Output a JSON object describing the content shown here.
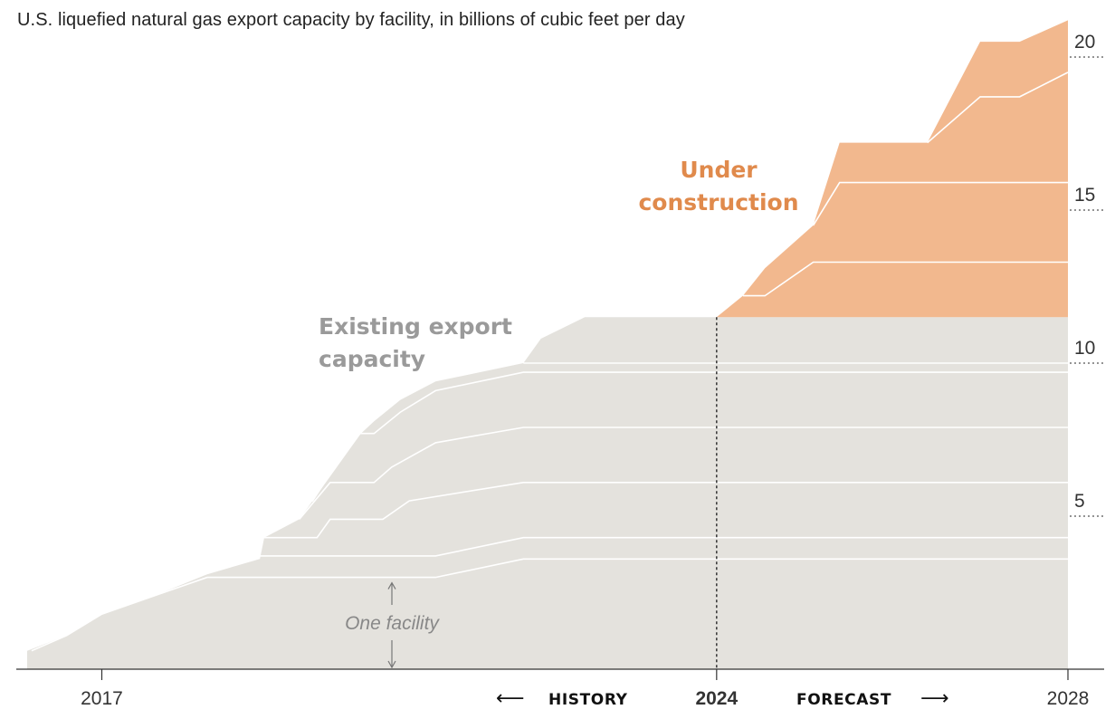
{
  "title": "U.S. liquefied natural gas export capacity by facility, in billions of cubic feet per day",
  "colors": {
    "existing": "#e4e2dd",
    "under_construction": "#f2b88e",
    "under_construction_label": "#e08a4c",
    "existing_label": "#9a9a9a",
    "divider": "#ffffff"
  },
  "chart_data": {
    "type": "area",
    "title": "U.S. liquefied natural gas export capacity by facility, in billions of cubic feet per day",
    "xlim": [
      2016.15,
      2028.0
    ],
    "ylim": [
      0,
      21.3
    ],
    "x_ticks": [
      {
        "value": 2017,
        "label": "2017",
        "bold": false
      },
      {
        "value": 2024,
        "label": "2024",
        "bold": true
      },
      {
        "value": 2028,
        "label": "2028",
        "bold": false
      }
    ],
    "y_ticks": [
      {
        "value": 5,
        "label": "5"
      },
      {
        "value": 10,
        "label": "10"
      },
      {
        "value": 15,
        "label": "15"
      },
      {
        "value": 20,
        "label": "20"
      }
    ],
    "divider_x": 2024,
    "navigation": {
      "history": "HISTORY",
      "forecast": "FORECAST",
      "left_arrow": "⟵",
      "right_arrow": "⟶"
    },
    "annotations": {
      "existing": [
        "Existing export capacity",
        "capacity"
      ],
      "under_construction": [
        "Under",
        "construction"
      ],
      "one_facility": "One facility"
    },
    "existing_total": [
      [
        2016.15,
        0.6
      ],
      [
        2016.6,
        1.1
      ],
      [
        2017.0,
        1.8
      ],
      [
        2017.6,
        2.4
      ],
      [
        2018.2,
        3.1
      ],
      [
        2018.8,
        3.6
      ],
      [
        2018.85,
        4.3
      ],
      [
        2019.25,
        4.9
      ],
      [
        2019.6,
        6.3
      ],
      [
        2019.95,
        7.7
      ],
      [
        2020.1,
        8.1
      ],
      [
        2020.4,
        8.8
      ],
      [
        2020.8,
        9.4
      ],
      [
        2021.8,
        10.0
      ],
      [
        2022.0,
        10.8
      ],
      [
        2022.5,
        11.5
      ],
      [
        2028.0,
        11.5
      ]
    ],
    "existing_boundaries": [
      [
        [
          2016.2,
          0.6
        ],
        [
          2016.6,
          1.1
        ],
        [
          2017.0,
          1.8
        ],
        [
          2017.6,
          2.4
        ],
        [
          2018.2,
          3.0
        ],
        [
          2018.8,
          3.0
        ],
        [
          2020.8,
          3.0
        ],
        [
          2021.8,
          3.6
        ],
        [
          2028.0,
          3.6
        ]
      ],
      [
        [
          2018.8,
          3.7
        ],
        [
          2020.8,
          3.7
        ],
        [
          2021.8,
          4.3
        ],
        [
          2028.0,
          4.3
        ]
      ],
      [
        [
          2018.85,
          4.3
        ],
        [
          2019.45,
          4.3
        ],
        [
          2019.6,
          4.9
        ],
        [
          2020.2,
          4.9
        ],
        [
          2020.5,
          5.5
        ],
        [
          2021.8,
          6.1
        ],
        [
          2028.0,
          6.1
        ]
      ],
      [
        [
          2019.25,
          4.9
        ],
        [
          2019.6,
          6.1
        ],
        [
          2020.1,
          6.1
        ],
        [
          2020.3,
          6.6
        ],
        [
          2020.8,
          7.4
        ],
        [
          2021.8,
          7.9
        ],
        [
          2028.0,
          7.9
        ]
      ],
      [
        [
          2019.25,
          5.5
        ],
        [
          2019.4,
          5.5
        ],
        [
          2019.9,
          7.7
        ],
        [
          2020.1,
          7.7
        ],
        [
          2020.4,
          8.4
        ],
        [
          2020.8,
          9.1
        ],
        [
          2021.8,
          9.7
        ],
        [
          2028.0,
          9.7
        ]
      ],
      [
        [
          2021.8,
          10.0
        ],
        [
          2028.0,
          10.0
        ]
      ]
    ],
    "under_total": [
      [
        2024.0,
        11.5
      ],
      [
        2024.3,
        12.2
      ],
      [
        2024.55,
        13.1
      ],
      [
        2025.1,
        14.5
      ],
      [
        2025.4,
        17.2
      ],
      [
        2026.4,
        17.2
      ],
      [
        2027.0,
        20.5
      ],
      [
        2027.45,
        20.5
      ],
      [
        2028.0,
        21.2
      ]
    ],
    "under_boundaries": [
      [
        [
          2024.3,
          12.2
        ],
        [
          2024.55,
          12.2
        ],
        [
          2025.1,
          13.3
        ],
        [
          2028.0,
          13.3
        ]
      ],
      [
        [
          2025.1,
          14.5
        ],
        [
          2025.4,
          15.9
        ],
        [
          2028.0,
          15.9
        ]
      ],
      [
        [
          2026.4,
          17.2
        ],
        [
          2027.0,
          18.7
        ],
        [
          2027.45,
          18.7
        ],
        [
          2028.0,
          19.5
        ]
      ]
    ]
  }
}
